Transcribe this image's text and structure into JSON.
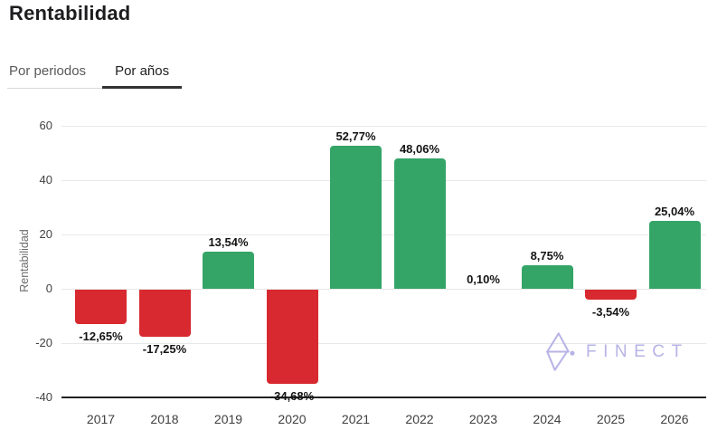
{
  "page": {
    "title": "Rentabilidad"
  },
  "tabs": {
    "items": [
      {
        "label": "Por periodos",
        "active": false
      },
      {
        "label": "Por años",
        "active": true
      }
    ]
  },
  "watermark": {
    "brand": "FINECT",
    "color": "#b7b3e6"
  },
  "chart_data": {
    "type": "bar",
    "title": "Rentabilidad",
    "categories": [
      "2017",
      "2018",
      "2019",
      "2020",
      "2021",
      "2022",
      "2023",
      "2024",
      "2025",
      "2026"
    ],
    "values": [
      -12.65,
      -17.25,
      13.54,
      -34.68,
      52.77,
      48.06,
      0.1,
      8.75,
      -3.54,
      25.04
    ],
    "bar_labels": [
      "-12,65%",
      "-17,25%",
      "13,54%",
      "-34,68%",
      "52,77%",
      "48,06%",
      "0,10%",
      "8,75%",
      "-3,54%",
      "25,04%"
    ],
    "xlabel": "",
    "ylabel": "Rentabilidad",
    "yticks": [
      60,
      40,
      20,
      0,
      -20,
      -40
    ],
    "ylim": [
      -40,
      66
    ],
    "grid": true,
    "legend": "none",
    "positive_color": "#34a567",
    "negative_color": "#d7292f",
    "gridline_color": "#e8e8e8",
    "axis_line_color": "#222222"
  }
}
